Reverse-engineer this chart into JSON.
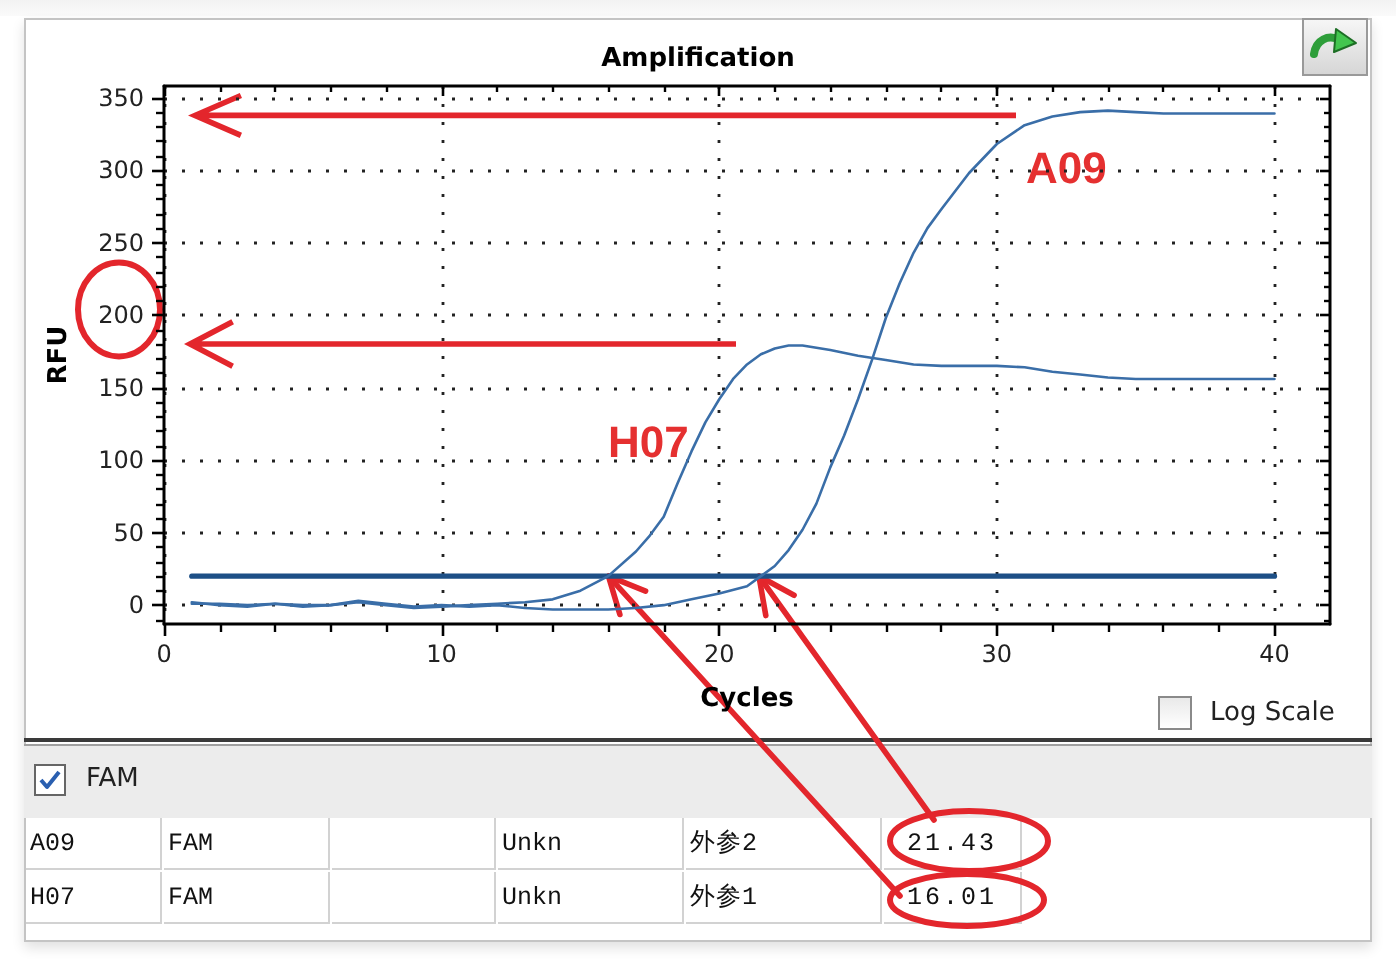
{
  "chart_data": {
    "type": "line",
    "title": "Amplification",
    "xlabel": "Cycles",
    "ylabel": "RFU",
    "xlim": [
      0,
      42
    ],
    "ylim": [
      -13,
      358
    ],
    "xticks": [
      0,
      {
        "value": 2,
        "label": null
      },
      {
        "value": 4,
        "label": null
      },
      {
        "value": 6,
        "label": null
      },
      {
        "value": 8,
        "label": null
      },
      10,
      {
        "value": 12,
        "label": null
      },
      {
        "value": 14,
        "label": null
      },
      {
        "value": 16,
        "label": null
      },
      {
        "value": 18,
        "label": null
      },
      20,
      {
        "value": 22,
        "label": null
      },
      {
        "value": 24,
        "label": null
      },
      {
        "value": 26,
        "label": null
      },
      {
        "value": 28,
        "label": null
      },
      30,
      {
        "value": 32,
        "label": null
      },
      {
        "value": 34,
        "label": null
      },
      {
        "value": 36,
        "label": null
      },
      {
        "value": 38,
        "label": null
      },
      40
    ],
    "yticks": [
      {
        "value": -10,
        "label": null
      },
      0,
      {
        "value": 10,
        "label": null
      },
      {
        "value": 20,
        "label": null
      },
      {
        "value": 30,
        "label": null
      },
      {
        "value": 40,
        "label": null
      },
      50,
      {
        "value": 60,
        "label": null
      },
      {
        "value": 70,
        "label": null
      },
      {
        "value": 80,
        "label": null
      },
      {
        "value": 90,
        "label": null
      },
      100,
      {
        "value": 110,
        "label": null
      },
      {
        "value": 120,
        "label": null
      },
      {
        "value": 130,
        "label": null
      },
      {
        "value": 140,
        "label": null
      },
      150,
      {
        "value": 160,
        "label": null
      },
      {
        "value": 170,
        "label": null
      },
      {
        "value": 180,
        "label": null
      },
      {
        "value": 190,
        "label": null
      },
      200,
      {
        "value": 210,
        "label": null
      },
      {
        "value": 220,
        "label": null
      },
      {
        "value": 230,
        "label": null
      },
      {
        "value": 240,
        "label": null
      },
      250,
      {
        "value": 260,
        "label": null
      },
      {
        "value": 270,
        "label": null
      },
      {
        "value": 280,
        "label": null
      },
      {
        "value": 290,
        "label": null
      },
      300,
      {
        "value": 310,
        "label": null
      },
      {
        "value": 320,
        "label": null
      },
      {
        "value": 330,
        "label": null
      },
      {
        "value": 340,
        "label": null
      },
      350
    ],
    "grid": true,
    "series": [
      {
        "name": "A09",
        "color": "#3a6ea8",
        "x": [
          1,
          2,
          3,
          4,
          5,
          6,
          7,
          8,
          9,
          10,
          11,
          12,
          13,
          14,
          15,
          16,
          17,
          18,
          19,
          20,
          21,
          21.5,
          22,
          22.5,
          23,
          23.5,
          24,
          24.5,
          25,
          25.5,
          26,
          26.5,
          27,
          27.5,
          28,
          29,
          30,
          31,
          32,
          33,
          34,
          35,
          36,
          37,
          38,
          39,
          40
        ],
        "values": [
          1,
          1,
          0,
          1,
          -1,
          0,
          3,
          1,
          -1,
          0,
          -1,
          0,
          -2,
          -3,
          -3,
          -3,
          -2,
          0,
          4,
          8,
          13,
          20,
          27,
          38,
          52,
          70,
          95,
          117,
          142,
          169,
          198,
          222,
          243,
          260,
          273,
          298,
          318,
          331,
          337,
          340,
          341,
          340,
          339,
          339,
          339,
          339,
          339
        ]
      },
      {
        "name": "H07",
        "color": "#3a6ea8",
        "x": [
          1,
          2,
          3,
          4,
          5,
          6,
          7,
          8,
          9,
          10,
          11,
          12,
          13,
          14,
          15,
          16,
          17,
          17.5,
          18,
          18.5,
          19,
          19.5,
          20,
          20.5,
          21,
          21.5,
          22,
          22.5,
          23,
          24,
          25,
          26,
          27,
          28,
          29,
          30,
          31,
          32,
          33,
          34,
          35,
          36,
          37,
          38,
          39,
          40
        ],
        "values": [
          2,
          0,
          -1,
          1,
          0,
          0,
          2,
          0,
          -2,
          -1,
          0,
          1,
          2,
          4,
          10,
          20,
          37,
          48,
          61,
          84,
          106,
          126,
          142,
          156,
          166,
          173,
          177,
          179,
          179,
          176,
          172,
          169,
          166,
          165,
          165,
          165,
          164,
          161,
          159,
          157,
          156,
          156,
          156,
          156,
          156,
          156
        ]
      },
      {
        "color": "#1d4f86",
        "x": [
          1,
          40
        ],
        "values": [
          20,
          20
        ]
      }
    ],
    "annotations": [
      "FAM",
      "Log Scale",
      "A09",
      "FAM",
      "Unkn",
      "外参2",
      {
        "text": "21.43",
        "x": 21.43,
        "y": 20
      },
      "H07",
      "FAM",
      "Unkn",
      "外参1",
      {
        "text": "16.01",
        "x": 16.01,
        "y": 20
      }
    ]
  }
}
